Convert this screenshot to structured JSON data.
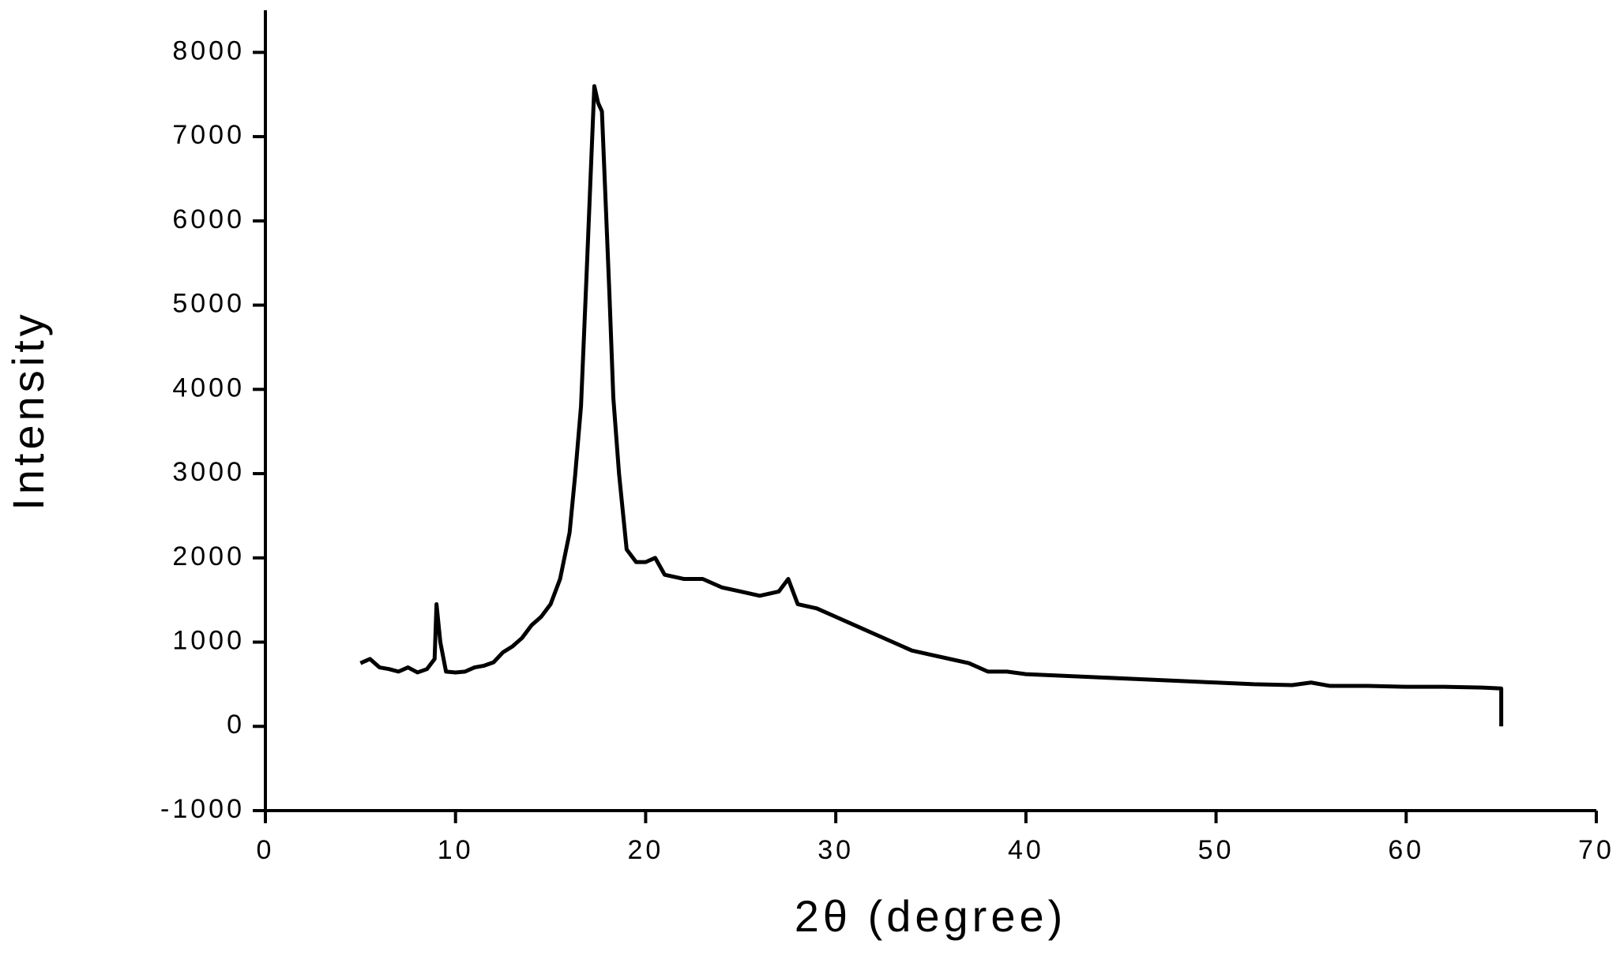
{
  "chart_data": {
    "type": "line",
    "xlabel": "2θ (degree)",
    "ylabel": "Intensity",
    "x": [
      5,
      5.5,
      6,
      6.5,
      7,
      7.5,
      8,
      8.5,
      8.9,
      9,
      9.2,
      9.5,
      10,
      10.5,
      11,
      11.5,
      12,
      12.5,
      13,
      13.5,
      14,
      14.5,
      15,
      15.5,
      16,
      16.3,
      16.6,
      16.9,
      17.1,
      17.3,
      17.5,
      17.7,
      17.9,
      18.1,
      18.3,
      18.6,
      19,
      19.5,
      20,
      20.5,
      21,
      22,
      23,
      24,
      25,
      26,
      27,
      27.5,
      28,
      29,
      30,
      31,
      32,
      33,
      34,
      35,
      36,
      37,
      38,
      39,
      40,
      42,
      44,
      46,
      48,
      50,
      52,
      54,
      55,
      56,
      58,
      60,
      62,
      64,
      65,
      65
    ],
    "series": [
      {
        "color": "#000000",
        "values": [
          750,
          800,
          700,
          680,
          650,
          700,
          640,
          680,
          800,
          1450,
          1000,
          650,
          640,
          650,
          700,
          720,
          760,
          880,
          950,
          1050,
          1200,
          1300,
          1450,
          1750,
          2300,
          3000,
          3800,
          5400,
          6500,
          7600,
          7400,
          7300,
          6200,
          5100,
          3900,
          3000,
          2100,
          1950,
          1950,
          2000,
          1800,
          1750,
          1750,
          1650,
          1600,
          1550,
          1600,
          1750,
          1450,
          1400,
          1300,
          1200,
          1100,
          1000,
          900,
          850,
          800,
          750,
          650,
          650,
          620,
          600,
          580,
          560,
          540,
          520,
          500,
          490,
          520,
          480,
          480,
          470,
          470,
          460,
          450,
          0
        ]
      }
    ],
    "xlim": [
      0,
      70
    ],
    "xticks": [
      0,
      10,
      20,
      30,
      40,
      50,
      60,
      70
    ],
    "ylim": [
      -1000,
      8500
    ],
    "yticks": [
      -1000,
      0,
      1000,
      2000,
      3000,
      4000,
      5000,
      6000,
      7000,
      8000
    ]
  }
}
